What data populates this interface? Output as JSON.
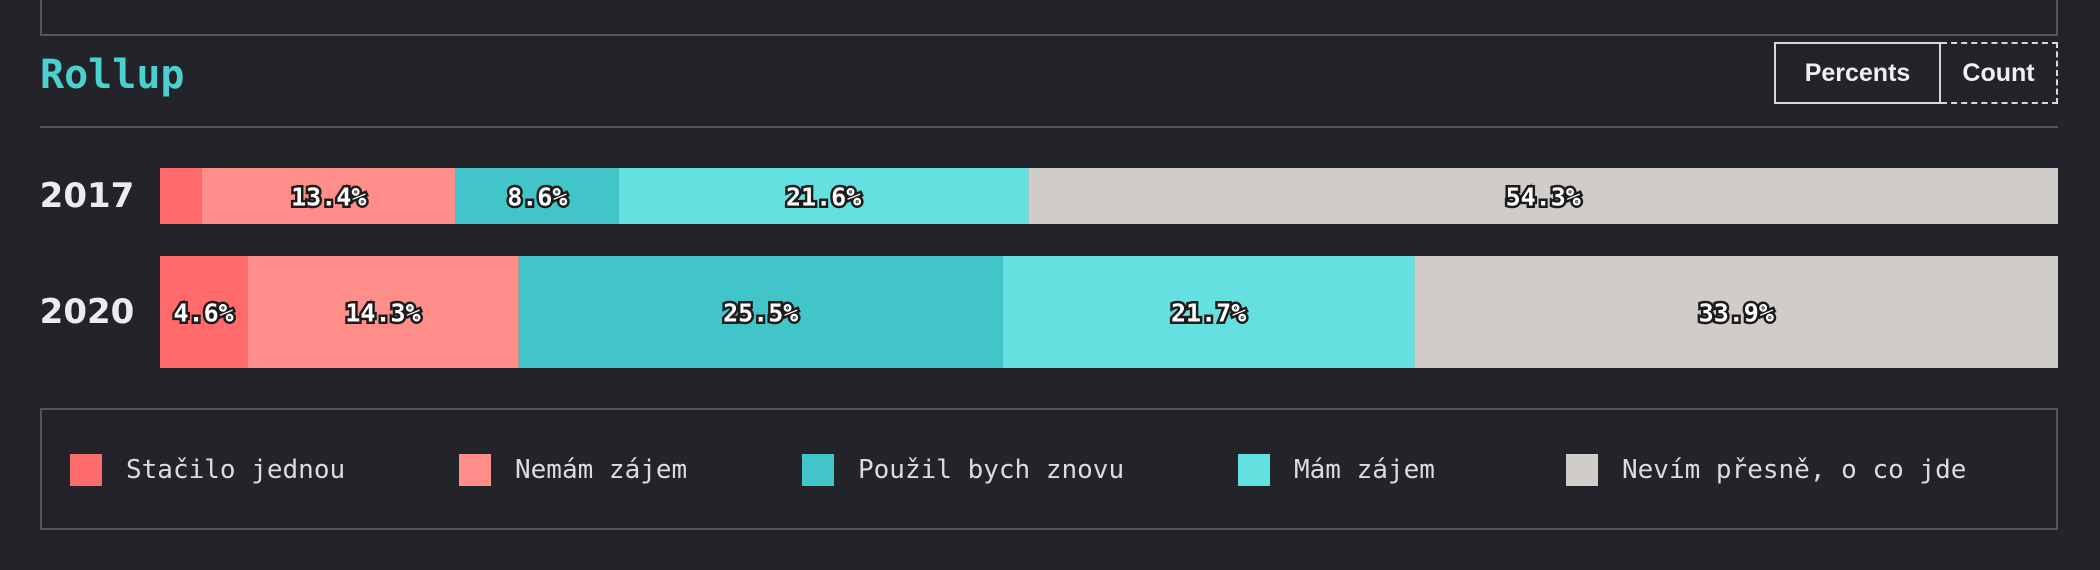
{
  "header": {
    "title": "Rollup",
    "toggle_percents": "Percents",
    "toggle_count": "Count"
  },
  "chart_data": {
    "type": "bar",
    "orientation": "horizontal",
    "stacked": true,
    "normalized_percent": true,
    "title": "Rollup",
    "categories": [
      "2017",
      "2020"
    ],
    "series": [
      {
        "name": "Stačilo jednou",
        "color": "#ff6b6b",
        "values": [
          2.2,
          4.6
        ],
        "labels": [
          "",
          "4.6%"
        ]
      },
      {
        "name": "Nemám zájem",
        "color": "#ff8e8b",
        "values": [
          13.4,
          14.3
        ],
        "labels": [
          "13.4%",
          "14.3%"
        ]
      },
      {
        "name": "Použil bych znovu",
        "color": "#42c5c8",
        "values": [
          8.6,
          25.5
        ],
        "labels": [
          "8.6%",
          "25.5%"
        ]
      },
      {
        "name": "Mám zájem",
        "color": "#64e0e0",
        "values": [
          21.6,
          21.7
        ],
        "labels": [
          "21.6%",
          "21.7%"
        ]
      },
      {
        "name": "Nevím přesně, o co jde",
        "color": "#cfccc9",
        "values": [
          54.3,
          33.9
        ],
        "labels": [
          "54.3%",
          "33.9%"
        ]
      }
    ],
    "legend_position": "bottom",
    "grid": false
  },
  "legend": {
    "items": [
      {
        "label": "Stačilo jednou",
        "color": "#ff6b6b"
      },
      {
        "label": "Nemám zájem",
        "color": "#ff8e8b"
      },
      {
        "label": "Použil bych znovu",
        "color": "#42c5c8"
      },
      {
        "label": "Mám zájem",
        "color": "#64e0e0"
      },
      {
        "label": "Nevím přesně, o co jde",
        "color": "#cfccc9"
      }
    ]
  }
}
